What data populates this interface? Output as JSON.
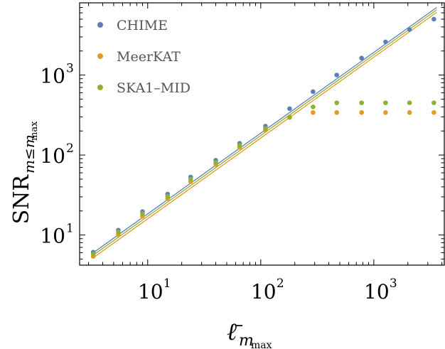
{
  "chart_data": {
    "type": "scatter",
    "x_scale": "log",
    "y_scale": "log",
    "xlim": [
      2.5,
      4200
    ],
    "ylim": [
      4.2,
      8000
    ],
    "xlabel": "ℓ̄",
    "xlabel_sub": "m",
    "xlabel_subsub": "max",
    "ylabel": "SNR",
    "ylabel_sub": "m≤m",
    "ylabel_subsub": "max",
    "grid": false,
    "legend_position": "top-left",
    "x_ticks": [
      {
        "value": 10,
        "base": "10",
        "exp": "1"
      },
      {
        "value": 100,
        "base": "10",
        "exp": "2"
      },
      {
        "value": 1000,
        "base": "10",
        "exp": "3"
      }
    ],
    "y_ticks": [
      {
        "value": 10,
        "base": "10",
        "exp": "1"
      },
      {
        "value": 100,
        "base": "10",
        "exp": "2"
      },
      {
        "value": 1000,
        "base": "10",
        "exp": "3"
      }
    ],
    "fit_lines": [
      {
        "color": "#5e81b5",
        "x": [
          3.3,
          3600
        ],
        "y": [
          6.0,
          7000
        ]
      },
      {
        "color": "#e19c24",
        "x": [
          3.3,
          3600
        ],
        "y": [
          5.2,
          6100
        ]
      },
      {
        "color": "#8fb032",
        "x": [
          3.3,
          3600
        ],
        "y": [
          5.6,
          6550
        ]
      }
    ],
    "series": [
      {
        "name": "CHIME",
        "color": "#5e81b5",
        "x": [
          3.3,
          5.5,
          9,
          15,
          24,
          40,
          65,
          110,
          180,
          290,
          470,
          780,
          1270,
          2070,
          3400
        ],
        "y": [
          6.1,
          11.5,
          19.6,
          32.5,
          53,
          86,
          140,
          230,
          380,
          620,
          1000,
          1630,
          2600,
          3700,
          5000
        ]
      },
      {
        "name": "MeerKAT",
        "color": "#e19c24",
        "x": [
          3.3,
          5.5,
          9,
          15,
          24,
          40,
          65,
          110,
          180,
          290,
          470,
          780,
          1270,
          2070,
          3400
        ],
        "y": [
          5.4,
          10.1,
          17.2,
          28.5,
          46.5,
          76,
          125,
          205,
          300,
          340,
          340,
          340,
          340,
          340,
          340
        ]
      },
      {
        "name": "SKA1–MID",
        "color": "#8fb032",
        "x": [
          3.3,
          5.5,
          9,
          15,
          24,
          40,
          65,
          110,
          180,
          290,
          470,
          780,
          1270,
          2070,
          3400
        ],
        "y": [
          5.8,
          10.9,
          18.5,
          30.5,
          50,
          81,
          132,
          215,
          295,
          400,
          450,
          450,
          450,
          450,
          450
        ]
      }
    ]
  }
}
